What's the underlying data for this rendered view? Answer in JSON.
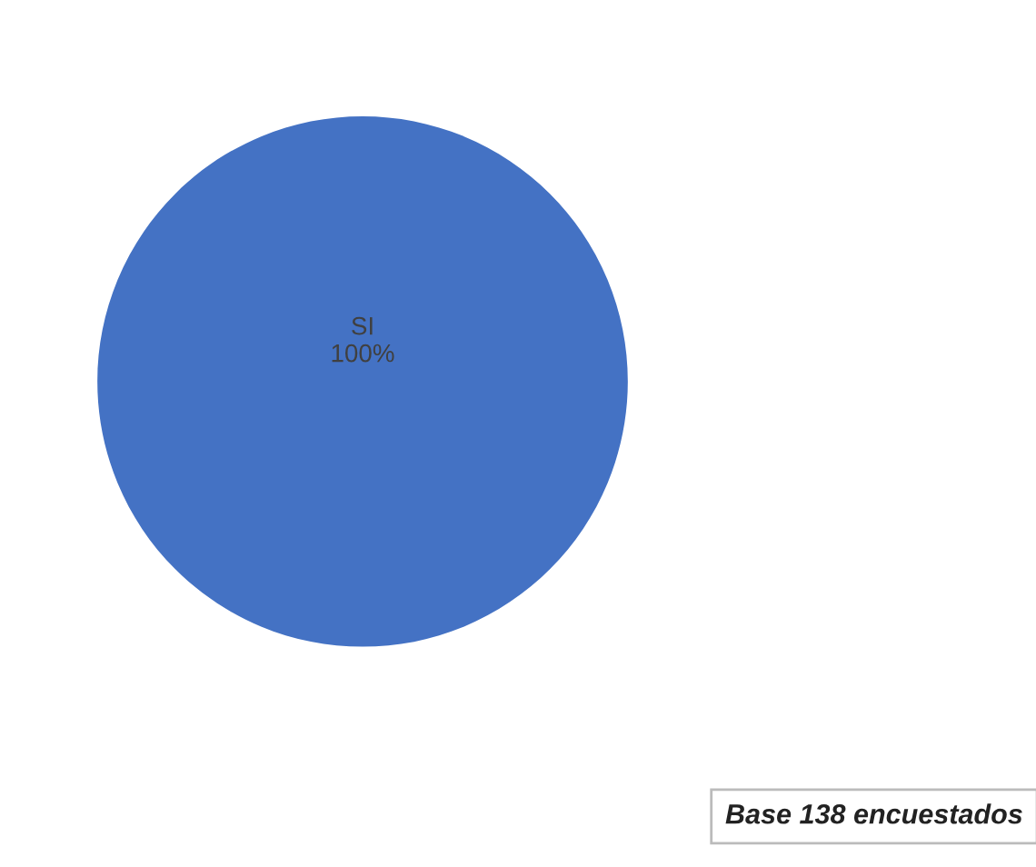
{
  "chart_data": {
    "type": "pie",
    "categories": [
      "SI"
    ],
    "values": [
      100
    ],
    "colors": [
      "#4472c4"
    ],
    "value_labels": [
      "100%"
    ],
    "annotations": [
      "Base 138 encuestados"
    ]
  }
}
